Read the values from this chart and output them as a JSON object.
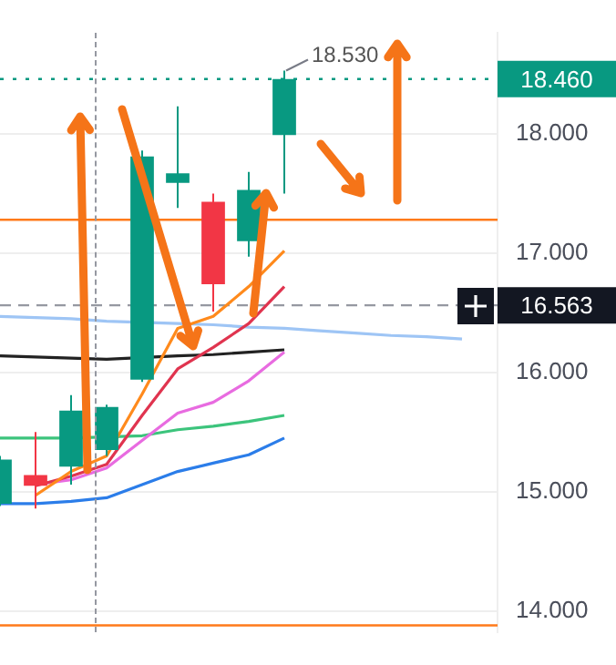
{
  "chart_data": {
    "type": "candlestick",
    "categories": [
      null,
      null,
      null,
      null,
      null,
      null,
      null,
      null,
      null,
      null,
      null,
      null,
      null,
      null,
      null
    ],
    "ohlc": [
      [
        14.9,
        15.3,
        14.88,
        15.27
      ],
      [
        15.14,
        15.5,
        14.86,
        15.05
      ],
      [
        15.21,
        15.81,
        15.06,
        15.68
      ],
      [
        15.35,
        15.73,
        15.3,
        15.71
      ],
      [
        15.94,
        17.86,
        15.92,
        17.81
      ],
      [
        17.59,
        18.23,
        17.38,
        17.67
      ],
      [
        17.43,
        17.5,
        16.51,
        16.74
      ],
      [
        17.1,
        17.68,
        16.97,
        17.53
      ],
      [
        17.99,
        18.53,
        17.5,
        18.46
      ],
      null,
      null,
      null,
      null,
      null,
      null
    ],
    "colors": [
      "#089981",
      "#f23645",
      "#089981",
      "#089981",
      "#089981",
      "#089981",
      "#f23645",
      "#089981",
      "#089981",
      null,
      null,
      null,
      null,
      null,
      null
    ],
    "series": [
      {
        "type": "line",
        "color": "#ff8a1c",
        "values": [
          null,
          14.97,
          15.17,
          15.3,
          15.82,
          16.37,
          16.47,
          16.72,
          17.02,
          null,
          null,
          null,
          null,
          null,
          null
        ]
      },
      {
        "type": "line",
        "color": "#e0344f",
        "values": [
          null,
          15.05,
          15.13,
          15.23,
          15.64,
          16.03,
          16.21,
          16.41,
          16.72,
          null,
          null,
          null,
          null,
          null,
          null
        ]
      },
      {
        "type": "line",
        "color": "#e86be0",
        "values": [
          null,
          15.06,
          15.1,
          15.2,
          15.43,
          15.66,
          15.75,
          15.93,
          16.17,
          null,
          null,
          null,
          null,
          null,
          null
        ]
      },
      {
        "type": "line",
        "color": "#3cc47c",
        "values": [
          15.45,
          15.45,
          15.45,
          null,
          15.47,
          15.52,
          15.55,
          15.59,
          15.64,
          null,
          null,
          null,
          null,
          null,
          null
        ]
      },
      {
        "type": "line",
        "color": "#2b7de9",
        "values": [
          14.9,
          14.9,
          14.92,
          14.95,
          15.06,
          15.17,
          15.24,
          15.31,
          15.45,
          null,
          null,
          null,
          null,
          null,
          null
        ]
      },
      {
        "type": "line",
        "color": "#222222",
        "values": [
          16.14,
          16.13,
          16.12,
          16.11,
          null,
          16.14,
          16.15,
          16.17,
          16.19,
          null,
          null,
          null,
          null,
          null,
          null
        ]
      },
      {
        "type": "line",
        "color": "#9ec5f5",
        "values": [
          16.47,
          16.46,
          16.45,
          16.43,
          null,
          16.41,
          16.4,
          16.38,
          16.37,
          16.35,
          16.33,
          16.31,
          16.3,
          16.28,
          null
        ]
      }
    ],
    "ylim": [
      13.82,
      18.85
    ],
    "yticks": [
      {
        "value": 14,
        "label": "14.000"
      },
      {
        "value": 15,
        "label": "15.000"
      },
      {
        "value": 16,
        "label": "16.000"
      },
      {
        "value": 17,
        "label": "17.000"
      },
      {
        "value": 18,
        "label": "18.000"
      }
    ],
    "tick_labels": "y",
    "grid": "y",
    "legend": false,
    "ref_lines": [
      {
        "axis": "y",
        "value": 18.46,
        "label": "18.460",
        "color": "#089981",
        "line_style": "dotted"
      },
      {
        "axis": "y",
        "value": 16.563,
        "label": "16.563",
        "color": "#9598a1",
        "line_style": "dashed"
      },
      {
        "axis": "y",
        "value": 17.28,
        "label": null,
        "color": "#ff7a1a",
        "line_style": "solid"
      },
      {
        "axis": "y",
        "value": 13.88,
        "label": null,
        "color": "#ff7a1a",
        "line_style": "solid"
      }
    ],
    "annotations": [
      {
        "text": "18.530",
        "y": 18.53
      }
    ]
  }
}
